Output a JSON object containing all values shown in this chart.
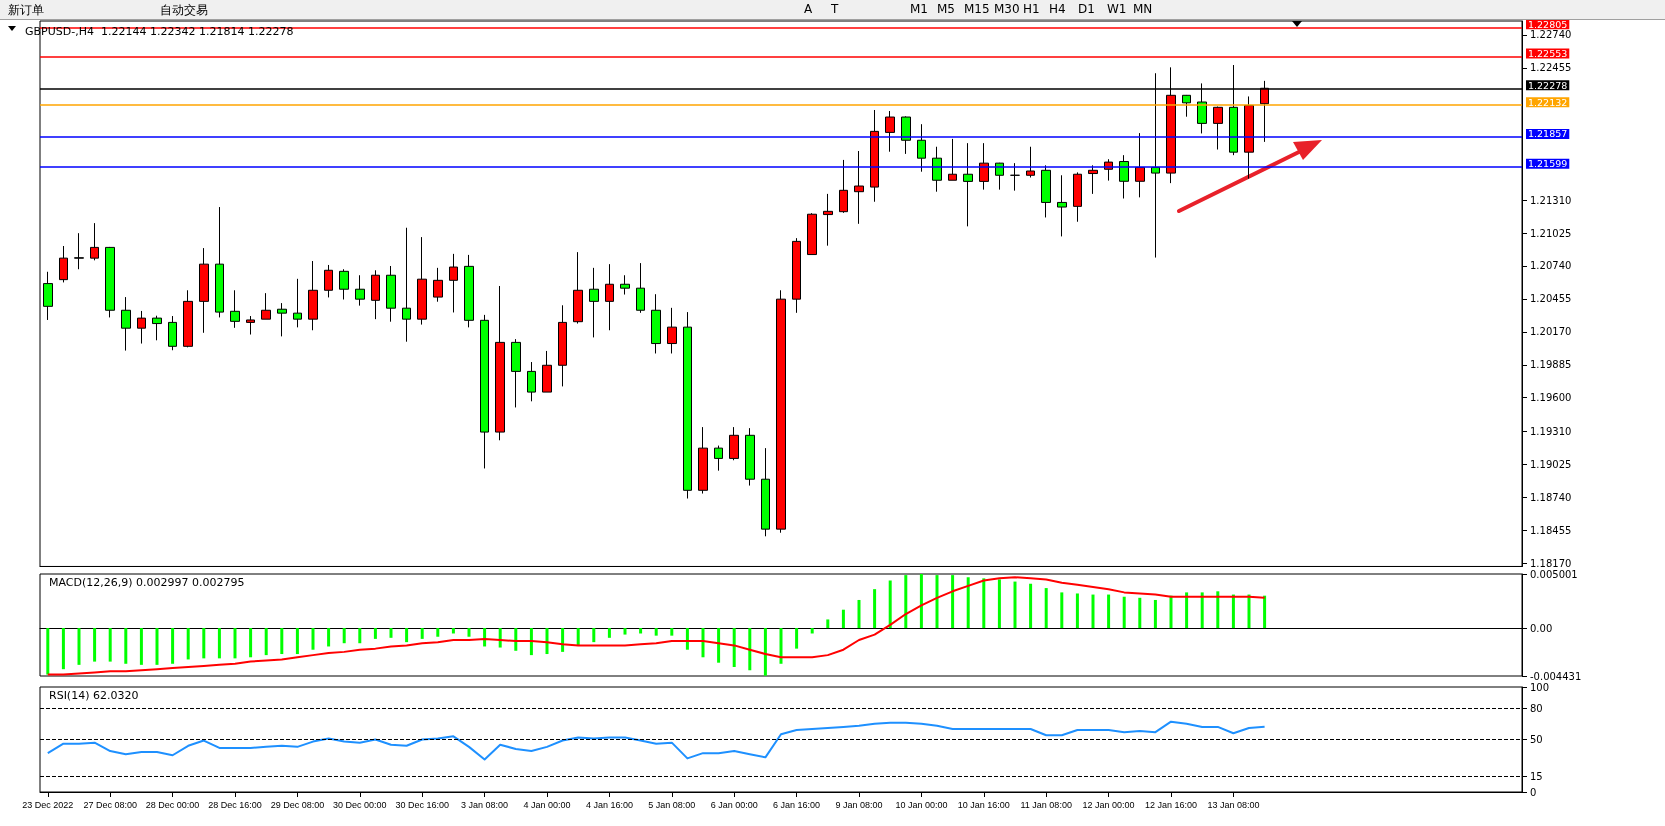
{
  "chart_data": [
    {
      "type": "candlestick",
      "title": "GBPUSD-,H4  1.22144 1.22342 1.21814 1.22278",
      "annotations": [
        "新订单",
        "自动交易",
        "A",
        "T",
        "M1",
        "M5",
        "M15",
        "M30",
        "H1",
        "H4",
        "D1",
        "W1",
        "MN"
      ],
      "categories": [
        null,
        null,
        null,
        null,
        null,
        null,
        null,
        null,
        null,
        null,
        null,
        null,
        null,
        null,
        null,
        null,
        null,
        null,
        null,
        null,
        null,
        null,
        null,
        null,
        null,
        null,
        null,
        null,
        null,
        null,
        null,
        null,
        null,
        null,
        null,
        null,
        null,
        null,
        null,
        null,
        null,
        null,
        null,
        null,
        null,
        null,
        null,
        null,
        null,
        null,
        null,
        null,
        null,
        null,
        null,
        null,
        null,
        null,
        null,
        null,
        null,
        null,
        null,
        null,
        null,
        null,
        null,
        null,
        null,
        null,
        null,
        null,
        null,
        null,
        null,
        null,
        null,
        null,
        null,
        null,
        null,
        null,
        null,
        null,
        null,
        null,
        null,
        null,
        null,
        null,
        null,
        null,
        null,
        null,
        null
      ],
      "ohlc": [
        [
          1.20588,
          1.2069,
          1.20273,
          1.20391
        ],
        [
          1.20622,
          1.20913,
          1.20598,
          1.20808
        ],
        [
          1.20808,
          1.21024,
          1.20712,
          1.20811
        ],
        [
          1.20808,
          1.21111,
          1.20789,
          1.20901
        ],
        [
          1.20901,
          1.20905,
          1.20295,
          1.20357
        ],
        [
          1.20357,
          1.20471,
          1.20008,
          1.20202
        ],
        [
          1.20202,
          1.20351,
          1.20069,
          1.20289
        ],
        [
          1.20289,
          1.2031,
          1.20097,
          1.20242
        ],
        [
          1.20252,
          1.20307,
          1.20011,
          1.20045
        ],
        [
          1.20045,
          1.2053,
          1.20036,
          1.20434
        ],
        [
          1.20434,
          1.20895,
          1.20162,
          1.20756
        ],
        [
          1.20756,
          1.2125,
          1.20295,
          1.20341
        ],
        [
          1.20348,
          1.2053,
          1.20205,
          1.20261
        ],
        [
          1.20252,
          1.20307,
          1.20147,
          1.20273
        ],
        [
          1.2028,
          1.20505,
          1.2028,
          1.20357
        ],
        [
          1.20366,
          1.20419,
          1.20131,
          1.20332
        ],
        [
          1.20332,
          1.20629,
          1.20209,
          1.2028
        ],
        [
          1.2028,
          1.20783,
          1.20184,
          1.2053
        ],
        [
          1.2053,
          1.20749,
          1.20468,
          1.20703
        ],
        [
          1.20694,
          1.20712,
          1.2045,
          1.20539
        ],
        [
          1.20539,
          1.2066,
          1.20397,
          1.20453
        ],
        [
          1.20443,
          1.20703,
          1.2028,
          1.2066
        ],
        [
          1.2066,
          1.2074,
          1.20258,
          1.20375
        ],
        [
          1.20375,
          1.21071,
          1.20085,
          1.2028
        ],
        [
          1.2028,
          1.2099,
          1.20233,
          1.20626
        ],
        [
          1.20471,
          1.20724,
          1.20431,
          1.20616
        ],
        [
          1.20616,
          1.20845,
          1.20338,
          1.20731
        ],
        [
          1.20737,
          1.20836,
          1.20209,
          1.2027
        ],
        [
          1.2027,
          1.20317,
          1.18988,
          1.19303
        ],
        [
          1.19303,
          1.20567,
          1.19232,
          1.20079
        ],
        [
          1.20079,
          1.20107,
          1.19516,
          1.19828
        ],
        [
          1.19828,
          1.19909,
          1.19569,
          1.19649
        ],
        [
          1.19649,
          1.20005,
          1.19649,
          1.19881
        ],
        [
          1.19881,
          1.204,
          1.19698,
          1.20252
        ],
        [
          1.20258,
          1.2086,
          1.20242,
          1.2053
        ],
        [
          1.20539,
          1.20724,
          1.20122,
          1.20434
        ],
        [
          1.20434,
          1.20756,
          1.20184,
          1.20582
        ],
        [
          1.20582,
          1.2066,
          1.20493,
          1.20548
        ],
        [
          1.20548,
          1.20765,
          1.20335,
          1.20357
        ],
        [
          1.20357,
          1.20496,
          1.19983,
          1.20069
        ],
        [
          1.20069,
          1.20378,
          1.19983,
          1.20211
        ],
        [
          1.20211,
          1.20341,
          1.18728,
          1.18799
        ],
        [
          1.18799,
          1.19346,
          1.18771,
          1.19164
        ],
        [
          1.19164,
          1.19186,
          1.18969,
          1.19075
        ],
        [
          1.19075,
          1.19346,
          1.19059,
          1.19275
        ],
        [
          1.19275,
          1.19337,
          1.1884,
          1.18895
        ],
        [
          1.18895,
          1.19164,
          1.18401,
          1.18463
        ],
        [
          1.18463,
          1.2053,
          1.18432,
          1.20453
        ],
        [
          1.20453,
          1.20981,
          1.20335,
          1.20953
        ],
        [
          1.20839,
          1.21197,
          1.20839,
          1.21188
        ],
        [
          1.21185,
          1.21364,
          1.20916,
          1.21213
        ],
        [
          1.2121,
          1.21658,
          1.212,
          1.21395
        ],
        [
          1.21383,
          1.21735,
          1.21105,
          1.21432
        ],
        [
          1.21423,
          1.2209,
          1.21296,
          1.21905
        ],
        [
          1.21896,
          1.22081,
          1.21729,
          1.22029
        ],
        [
          1.22029,
          1.22035,
          1.2171,
          1.21828
        ],
        [
          1.21828,
          1.21967,
          1.21556,
          1.21673
        ],
        [
          1.21673,
          1.21772,
          1.21383,
          1.21482
        ],
        [
          1.21482,
          1.2184,
          1.21482,
          1.21534
        ],
        [
          1.21534,
          1.21803,
          1.21083,
          1.21472
        ],
        [
          1.21472,
          1.21803,
          1.21401,
          1.2163
        ],
        [
          1.2163,
          1.21633,
          1.21401,
          1.21525
        ],
        [
          1.21525,
          1.2163,
          1.21392,
          1.21525
        ],
        [
          1.21525,
          1.21772,
          1.21506,
          1.21562
        ],
        [
          1.21568,
          1.21611,
          1.2116,
          1.2129
        ],
        [
          1.2129,
          1.21525,
          1.20996,
          1.2125
        ],
        [
          1.21256,
          1.2155,
          1.21123,
          1.21534
        ],
        [
          1.2154,
          1.21611,
          1.21364,
          1.21568
        ],
        [
          1.21577,
          1.21664,
          1.21479,
          1.21639
        ],
        [
          1.21644,
          1.21699,
          1.21324,
          1.21473
        ],
        [
          1.21473,
          1.2189,
          1.21334,
          1.21593
        ],
        [
          1.21593,
          1.22408,
          1.20813,
          1.21544
        ],
        [
          1.21544,
          1.22459,
          1.21457,
          1.22217
        ],
        [
          1.22217,
          1.2222,
          1.22032,
          1.22152
        ],
        [
          1.22159,
          1.2232,
          1.21887,
          1.21974
        ],
        [
          1.21974,
          1.2212,
          1.21748,
          1.22113
        ],
        [
          1.22113,
          1.22479,
          1.21699,
          1.21725
        ],
        [
          1.21725,
          1.22207,
          1.21496,
          1.22129
        ],
        [
          1.22144,
          1.22342,
          1.21814,
          1.22278
        ],
        null,
        null,
        null,
        null,
        null,
        null,
        null,
        null,
        null,
        null,
        null,
        null,
        null,
        null,
        null,
        null
      ],
      "colors": [
        "#00ff00",
        "#ff0000",
        "#000000",
        "#ff0000",
        "#00ff00",
        "#00ff00",
        "#ff0000",
        "#00ff00",
        "#00ff00",
        "#ff0000",
        "#ff0000",
        "#00ff00",
        "#00ff00",
        "#ff0000",
        "#ff0000",
        "#00ff00",
        "#00ff00",
        "#ff0000",
        "#ff0000",
        "#00ff00",
        "#00ff00",
        "#ff0000",
        "#00ff00",
        "#00ff00",
        "#ff0000",
        "#ff0000",
        "#ff0000",
        "#00ff00",
        "#00ff00",
        "#ff0000",
        "#00ff00",
        "#00ff00",
        "#ff0000",
        "#ff0000",
        "#ff0000",
        "#00ff00",
        "#ff0000",
        "#00ff00",
        "#00ff00",
        "#00ff00",
        "#ff0000",
        "#00ff00",
        "#ff0000",
        "#00ff00",
        "#ff0000",
        "#00ff00",
        "#00ff00",
        "#ff0000",
        "#ff0000",
        "#ff0000",
        "#ff0000",
        "#ff0000",
        "#ff0000",
        "#ff0000",
        "#ff0000",
        "#00ff00",
        "#00ff00",
        "#00ff00",
        "#ff0000",
        "#00ff00",
        "#ff0000",
        "#00ff00",
        "#000000",
        "#ff0000",
        "#00ff00",
        "#00ff00",
        "#ff0000",
        "#ff0000",
        "#ff0000",
        "#00ff00",
        "#ff0000",
        "#00ff00",
        "#ff0000",
        "#00ff00",
        "#00ff00",
        "#ff0000",
        "#00ff00",
        "#ff0000",
        "#ff0000",
        null,
        null,
        null,
        null,
        null,
        null,
        null,
        null,
        null,
        null,
        null,
        null,
        null,
        null,
        null,
        null
      ],
      "ylim": [
        1.1814,
        1.2286
      ],
      "yticks": [
        {
          "value": 1.1817,
          "label": "1.18170"
        },
        1.18455,
        {
          "value": 1.1874,
          "label": "1.18740"
        },
        1.19025,
        {
          "value": 1.1931,
          "label": "1.19310"
        },
        {
          "value": 1.196,
          "label": "1.19600"
        },
        1.19885,
        {
          "value": 1.2017,
          "label": "1.20170"
        },
        1.20455,
        {
          "value": 1.2074,
          "label": "1.20740"
        },
        1.21025,
        {
          "value": 1.2131,
          "label": "1.21310"
        },
        1.22455,
        {
          "value": 1.2274,
          "label": "1.22740"
        }
      ],
      "ref_lines": [
        {
          "axis": "y",
          "value": 1.22805,
          "label": "1.22805",
          "color": "#ff0000"
        },
        {
          "axis": "y",
          "value": 1.22553,
          "label": "1.22553",
          "color": "#ff0000"
        },
        {
          "axis": "y",
          "value": 1.22278,
          "label": "1.22278",
          "color": "#000000"
        },
        {
          "axis": "y",
          "value": 1.22132,
          "label": "1.22132",
          "color": "#ffa500"
        },
        {
          "axis": "y",
          "value": 1.21857,
          "label": "1.21857",
          "color": "#0000ff"
        },
        {
          "axis": "y",
          "value": 1.21599,
          "label": "1.21599",
          "color": "#0000ff"
        }
      ],
      "tick_labels": "y"
    },
    {
      "type": "bar",
      "title": "MACD(12,26,9) 0.002997 0.002795",
      "categories": [
        null,
        null,
        null,
        null,
        null,
        null,
        null,
        null,
        null,
        null,
        null,
        null,
        null,
        null,
        null,
        null,
        null,
        null,
        null,
        null,
        null,
        null,
        null,
        null,
        null,
        null,
        null,
        null,
        null,
        null,
        null,
        null,
        null,
        null,
        null,
        null,
        null,
        null,
        null,
        null,
        null,
        null,
        null,
        null,
        null,
        null,
        null,
        null,
        null,
        null,
        null,
        null,
        null,
        null,
        null,
        null,
        null,
        null,
        null,
        null,
        null,
        null,
        null,
        null,
        null,
        null,
        null,
        null,
        null,
        null,
        null,
        null,
        null,
        null,
        null,
        null,
        null,
        null,
        null,
        null,
        null,
        null,
        null,
        null,
        null,
        null,
        null,
        null,
        null,
        null,
        null,
        null,
        null,
        null,
        null
      ],
      "series": [
        {
          "color": "#00ff00",
          "values": [
            -0.0043,
            -0.0038,
            -0.0034,
            -0.0031,
            -0.0031,
            -0.0033,
            -0.0034,
            -0.0034,
            -0.0033,
            -0.0029,
            -0.0028,
            -0.0028,
            -0.0028,
            -0.0027,
            -0.0025,
            -0.0024,
            -0.0024,
            -0.002,
            -0.0017,
            -0.0014,
            -0.0014,
            -0.001,
            -0.0009,
            -0.0013,
            -0.001,
            -0.0008,
            -0.0005,
            -0.0008,
            -0.0017,
            -0.0018,
            -0.0021,
            -0.0025,
            -0.0024,
            -0.0022,
            -0.0016,
            -0.0013,
            -0.0009,
            -0.0006,
            -0.0005,
            -0.0007,
            -0.0007,
            -0.002,
            -0.0027,
            -0.0032,
            -0.0036,
            -0.0039,
            -0.0044,
            -0.0033,
            -0.0019,
            -0.0005,
            0.0008,
            0.0017,
            0.0026,
            0.0036,
            0.0044,
            0.0049,
            0.005,
            0.0049,
            0.0049,
            0.0047,
            0.0046,
            0.0045,
            0.0043,
            0.0041,
            0.0037,
            0.0033,
            0.0032,
            0.0031,
            0.0031,
            0.0029,
            0.0028,
            0.0026,
            0.003,
            0.0033,
            0.0033,
            0.0034,
            0.0031,
            0.0031,
            0.002997,
            null,
            null,
            null,
            null,
            null,
            null,
            null,
            null,
            null,
            null,
            null,
            null,
            null,
            null,
            null,
            null
          ]
        },
        {
          "type": "line",
          "color": "#ff0000",
          "values": [
            -0.0043,
            -0.0043,
            -0.0042,
            -0.0041,
            -0.004,
            -0.004,
            -0.0039,
            -0.0038,
            -0.0037,
            -0.0036,
            -0.0035,
            -0.0034,
            -0.0033,
            -0.0031,
            -0.003,
            -0.0029,
            -0.0027,
            -0.0025,
            -0.0023,
            -0.0022,
            -0.002,
            -0.0019,
            -0.0017,
            -0.0016,
            -0.0014,
            -0.0013,
            -0.0011,
            -0.0011,
            -0.001,
            -0.0011,
            -0.0012,
            -0.0012,
            -0.0013,
            -0.0015,
            -0.0016,
            -0.0016,
            -0.0016,
            -0.0016,
            -0.0015,
            -0.0014,
            -0.0012,
            -0.0012,
            -0.0012,
            -0.0014,
            -0.0016,
            -0.002,
            -0.0024,
            -0.0027,
            -0.0027,
            -0.0027,
            -0.0025,
            -0.002,
            -0.0011,
            -0.0006,
            0.0003,
            0.0013,
            0.0021,
            0.0028,
            0.0034,
            0.0039,
            0.0044,
            0.0046,
            0.0047,
            0.0046,
            0.0045,
            0.0042,
            0.004,
            0.0038,
            0.0036,
            0.0033,
            0.0032,
            0.0031,
            0.0029,
            0.0029,
            0.0029,
            0.0029,
            0.0029,
            0.0029,
            0.002795,
            null,
            null,
            null,
            null,
            null,
            null,
            null,
            null,
            null,
            null,
            null,
            null,
            null,
            null,
            null,
            null
          ]
        }
      ],
      "ylim": [
        -0.004431,
        0.005001
      ],
      "yticks": [
        -0.004431,
        {
          "value": 0,
          "label": "0.00"
        },
        0.005001
      ],
      "marker": "none",
      "tick_labels": "y"
    },
    {
      "type": "line",
      "title": "RSI(14) 62.0320",
      "categories": [
        "23 Dec 2022",
        null,
        null,
        null,
        "27 Dec 08:00",
        null,
        null,
        null,
        "28 Dec 00:00",
        null,
        null,
        null,
        "28 Dec 16:00",
        null,
        null,
        null,
        "29 Dec 08:00",
        null,
        null,
        null,
        "30 Dec 00:00",
        null,
        null,
        null,
        "30 Dec 16:00",
        null,
        null,
        null,
        "3 Jan 08:00",
        null,
        null,
        null,
        "4 Jan 00:00",
        null,
        null,
        null,
        "4 Jan 16:00",
        null,
        null,
        null,
        "5 Jan 08:00",
        null,
        null,
        null,
        "6 Jan 00:00",
        null,
        null,
        null,
        "6 Jan 16:00",
        null,
        null,
        null,
        "9 Jan 08:00",
        null,
        null,
        null,
        "10 Jan 00:00",
        null,
        null,
        null,
        "10 Jan 16:00",
        null,
        null,
        null,
        "11 Jan 08:00",
        null,
        null,
        null,
        "12 Jan 00:00",
        null,
        null,
        null,
        "12 Jan 16:00",
        null,
        null,
        null,
        "13 Jan 08:00",
        null,
        null,
        null,
        null,
        null,
        null,
        null,
        null,
        null,
        null,
        null,
        null,
        null,
        null,
        null,
        null,
        null,
        null
      ],
      "series": [
        {
          "color": "#1e90ff",
          "values": [
            37,
            46,
            46,
            47,
            39,
            36,
            38,
            38,
            35,
            44,
            49,
            42,
            42,
            42,
            43,
            44,
            43,
            48,
            51,
            48,
            47,
            50,
            45,
            44,
            50,
            51,
            53,
            43,
            31,
            45,
            41,
            39,
            43,
            49,
            52,
            51,
            52,
            52,
            49,
            46,
            47,
            32,
            37,
            37,
            39,
            36,
            33,
            55,
            59,
            60,
            61,
            62,
            63,
            65,
            66,
            66,
            65,
            63,
            60,
            60,
            60,
            60,
            60,
            60,
            54,
            54,
            59,
            59,
            59,
            57,
            58,
            57,
            67,
            65,
            62,
            62,
            56,
            61,
            62.032,
            null,
            null,
            null,
            null,
            null,
            null,
            null,
            null,
            null,
            null,
            null,
            null,
            null,
            null,
            null,
            null
          ]
        }
      ],
      "ylim": [
        0,
        100
      ],
      "yticks": [
        0,
        15,
        50,
        80,
        100
      ],
      "ref_lines": [
        {
          "axis": "y",
          "value": 15,
          "color": "#000000",
          "line_style": "dashed"
        },
        {
          "axis": "y",
          "value": 50,
          "color": "#000000",
          "line_style": "dashed"
        },
        {
          "axis": "y",
          "value": 80,
          "color": "#000000",
          "line_style": "dashed"
        }
      ],
      "marker": "none"
    }
  ]
}
